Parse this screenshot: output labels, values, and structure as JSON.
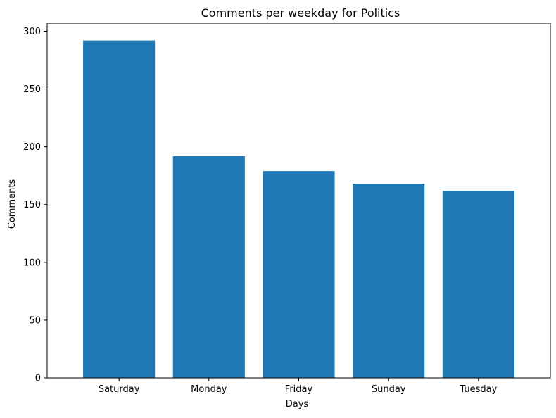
{
  "chart_data": {
    "type": "bar",
    "title": "Comments per weekday for Politics",
    "xlabel": "Days",
    "ylabel": "Comments",
    "categories": [
      "Saturday",
      "Monday",
      "Friday",
      "Sunday",
      "Tuesday"
    ],
    "values": [
      292,
      192,
      179,
      168,
      162
    ],
    "ylim": [
      0,
      307
    ],
    "yticks": [
      0,
      50,
      100,
      150,
      200,
      250,
      300
    ],
    "grid": false,
    "legend": "none",
    "bar_color": "#1f77b4"
  }
}
